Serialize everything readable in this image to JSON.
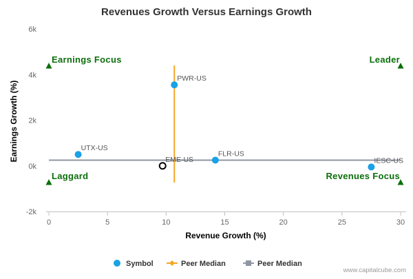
{
  "chart_data": {
    "type": "scatter",
    "title": "Revenues Growth Versus Earnings Growth",
    "xlabel": "Revenue Growth (%)",
    "ylabel": "Earnings Growth (%)",
    "xlim": [
      0,
      30
    ],
    "ylim": [
      -2000,
      6000
    ],
    "x_ticks": [
      {
        "value": 0,
        "label": "0"
      },
      {
        "value": 5,
        "label": "5"
      },
      {
        "value": 10,
        "label": "10"
      },
      {
        "value": 15,
        "label": "15"
      },
      {
        "value": 20,
        "label": "20"
      },
      {
        "value": 25,
        "label": "25"
      },
      {
        "value": 30,
        "label": "30"
      }
    ],
    "y_ticks": [
      {
        "value": -2000,
        "label": "-2k"
      },
      {
        "value": 0,
        "label": "0k"
      },
      {
        "value": 2000,
        "label": "2k"
      },
      {
        "value": 4000,
        "label": "4k"
      },
      {
        "value": 6000,
        "label": "6k"
      }
    ],
    "grid": false,
    "points": [
      {
        "label": "PWR-US",
        "x": 10.7,
        "y": 3550,
        "style": "filled",
        "color": "#1aa1e6"
      },
      {
        "label": "UTX-US",
        "x": 2.5,
        "y": 500,
        "style": "filled",
        "color": "#1aa1e6"
      },
      {
        "label": "EME-US",
        "x": 9.7,
        "y": 0,
        "style": "open",
        "color": "#000000"
      },
      {
        "label": "FLR-US",
        "x": 14.2,
        "y": 250,
        "style": "filled",
        "color": "#1aa1e6"
      },
      {
        "label": "IESC-US",
        "x": 27.5,
        "y": -50,
        "style": "filled",
        "color": "#1aa1e6"
      }
    ],
    "peer_median_x": 10.7,
    "peer_median_y": 250,
    "quadrants": {
      "top_left": "Earnings Focus",
      "top_right": "Leader",
      "bottom_left": "Laggard",
      "bottom_right": "Revenues Focus"
    },
    "legend": {
      "placement": "bottom",
      "items": [
        {
          "label": "Symbol",
          "marker": "circle",
          "color": "#1aa1e6"
        },
        {
          "label": "Peer Median",
          "marker": "diamond",
          "color": "#f5a623"
        },
        {
          "label": "Peer Median",
          "marker": "square",
          "color": "#8f96a3"
        }
      ]
    }
  },
  "colors": {
    "symbol": "#1aa1e6",
    "peer_median_vertical": "#f5a623",
    "peer_median_horizontal": "#8f96a3",
    "quadrant_label": "#0b6e0b"
  },
  "credit": "www.capitalcube.com"
}
